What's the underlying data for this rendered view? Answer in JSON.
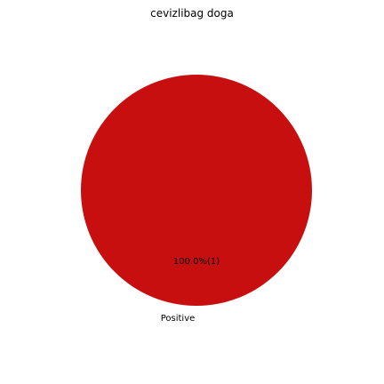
{
  "chart_data": {
    "type": "pie",
    "title": "cevizlibag doga",
    "slices": [
      {
        "label": "Positive",
        "value": 1,
        "pct_label": "100.0%(1)",
        "color": "#c80f0f"
      }
    ]
  }
}
